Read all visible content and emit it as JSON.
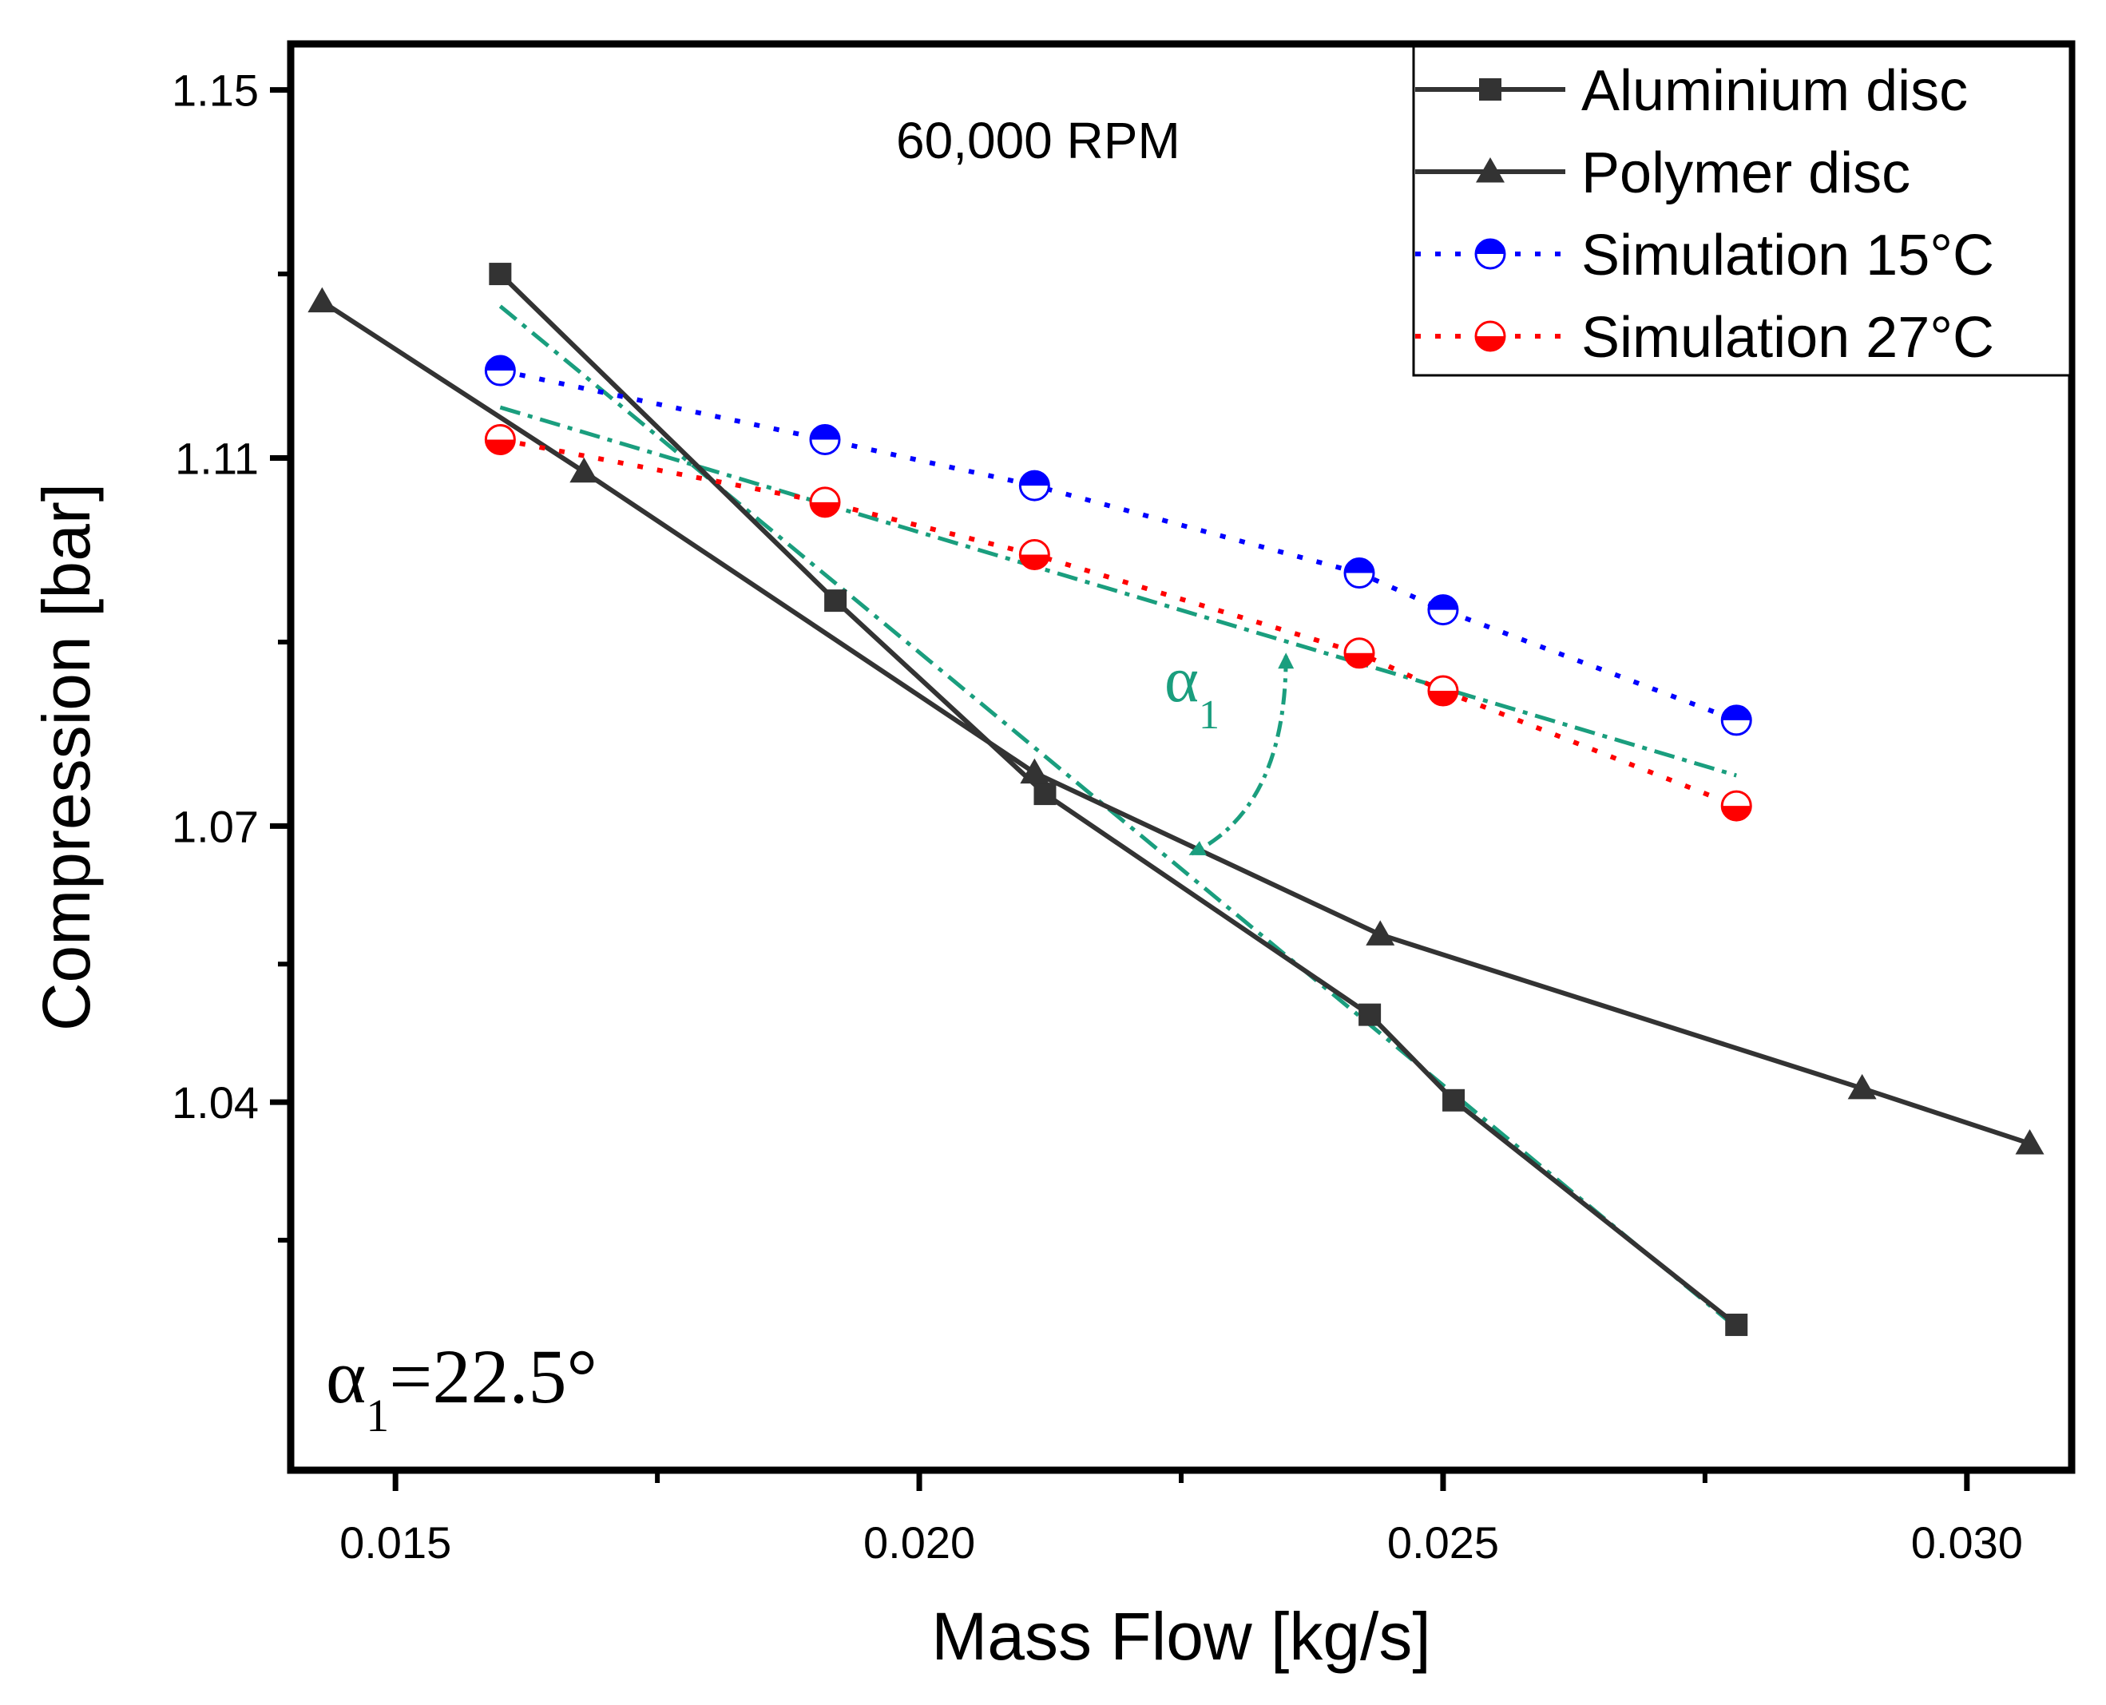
{
  "chart_data": {
    "type": "line",
    "xlabel": "Mass Flow [kg/s]",
    "ylabel": "Compression [bar]",
    "xlim": [
      0.014,
      0.031
    ],
    "ylim": [
      1.0,
      1.155
    ],
    "xticks": [
      0.015,
      0.02,
      0.025,
      0.03
    ],
    "xtick_labels": [
      "0.015",
      "0.020",
      "0.025",
      "0.030"
    ],
    "yticks": [
      1.04,
      1.07,
      1.11,
      1.15
    ],
    "ytick_labels": [
      "1.04",
      "1.07",
      "1.11",
      "1.15"
    ],
    "annotation_rpm": "60,000 RPM",
    "angle_label": {
      "symbol": "α",
      "subscript": "1"
    },
    "angle_value": {
      "symbol": "α",
      "subscript": "1",
      "text": "=22.5°"
    },
    "legend_position": "top-right",
    "series": [
      {
        "name": "Aluminium disc",
        "marker": "square",
        "line": "solid",
        "color": "#333333",
        "points": [
          [
            0.016,
            1.13
          ],
          [
            0.0192,
            1.0945
          ],
          [
            0.0212,
            1.0735
          ],
          [
            0.0243,
            1.0495
          ],
          [
            0.0251,
            1.0402
          ],
          [
            0.0278,
            1.0158
          ]
        ]
      },
      {
        "name": "Polymer disc",
        "marker": "triangle",
        "line": "solid",
        "color": "#333333",
        "points": [
          [
            0.0143,
            1.127
          ],
          [
            0.0168,
            1.1085
          ],
          [
            0.0211,
            1.0758
          ],
          [
            0.0244,
            1.0582
          ],
          [
            0.029,
            1.0415
          ],
          [
            0.0306,
            1.0355
          ]
        ]
      },
      {
        "name": "Simulation 15°C",
        "marker": "half-circle",
        "line": "dotted",
        "color": "#0000ff",
        "points": [
          [
            0.016,
            1.1195
          ],
          [
            0.0191,
            1.112
          ],
          [
            0.0211,
            1.107
          ],
          [
            0.0242,
            1.0975
          ],
          [
            0.025,
            1.0935
          ],
          [
            0.0278,
            1.0815
          ]
        ]
      },
      {
        "name": "Simulation 27°C",
        "marker": "half-circle",
        "line": "dotted",
        "color": "#ff0000",
        "points": [
          [
            0.016,
            1.112
          ],
          [
            0.0191,
            1.1052
          ],
          [
            0.0211,
            1.0995
          ],
          [
            0.0242,
            1.0888
          ],
          [
            0.025,
            1.0847
          ],
          [
            0.0278,
            1.0722
          ]
        ]
      }
    ],
    "fit_lines": {
      "color": "#1a9e7e",
      "lines": [
        [
          [
            0.016,
            1.1265
          ],
          [
            0.0278,
            1.0155
          ]
        ],
        [
          [
            0.016,
            1.1155
          ],
          [
            0.0278,
            1.0755
          ]
        ]
      ]
    },
    "angle_arc": {
      "color": "#1a9e7e",
      "start": [
        0.0235,
        1.0885
      ],
      "end": [
        0.0226,
        1.067
      ],
      "control": [
        0.0235,
        1.072
      ]
    }
  }
}
